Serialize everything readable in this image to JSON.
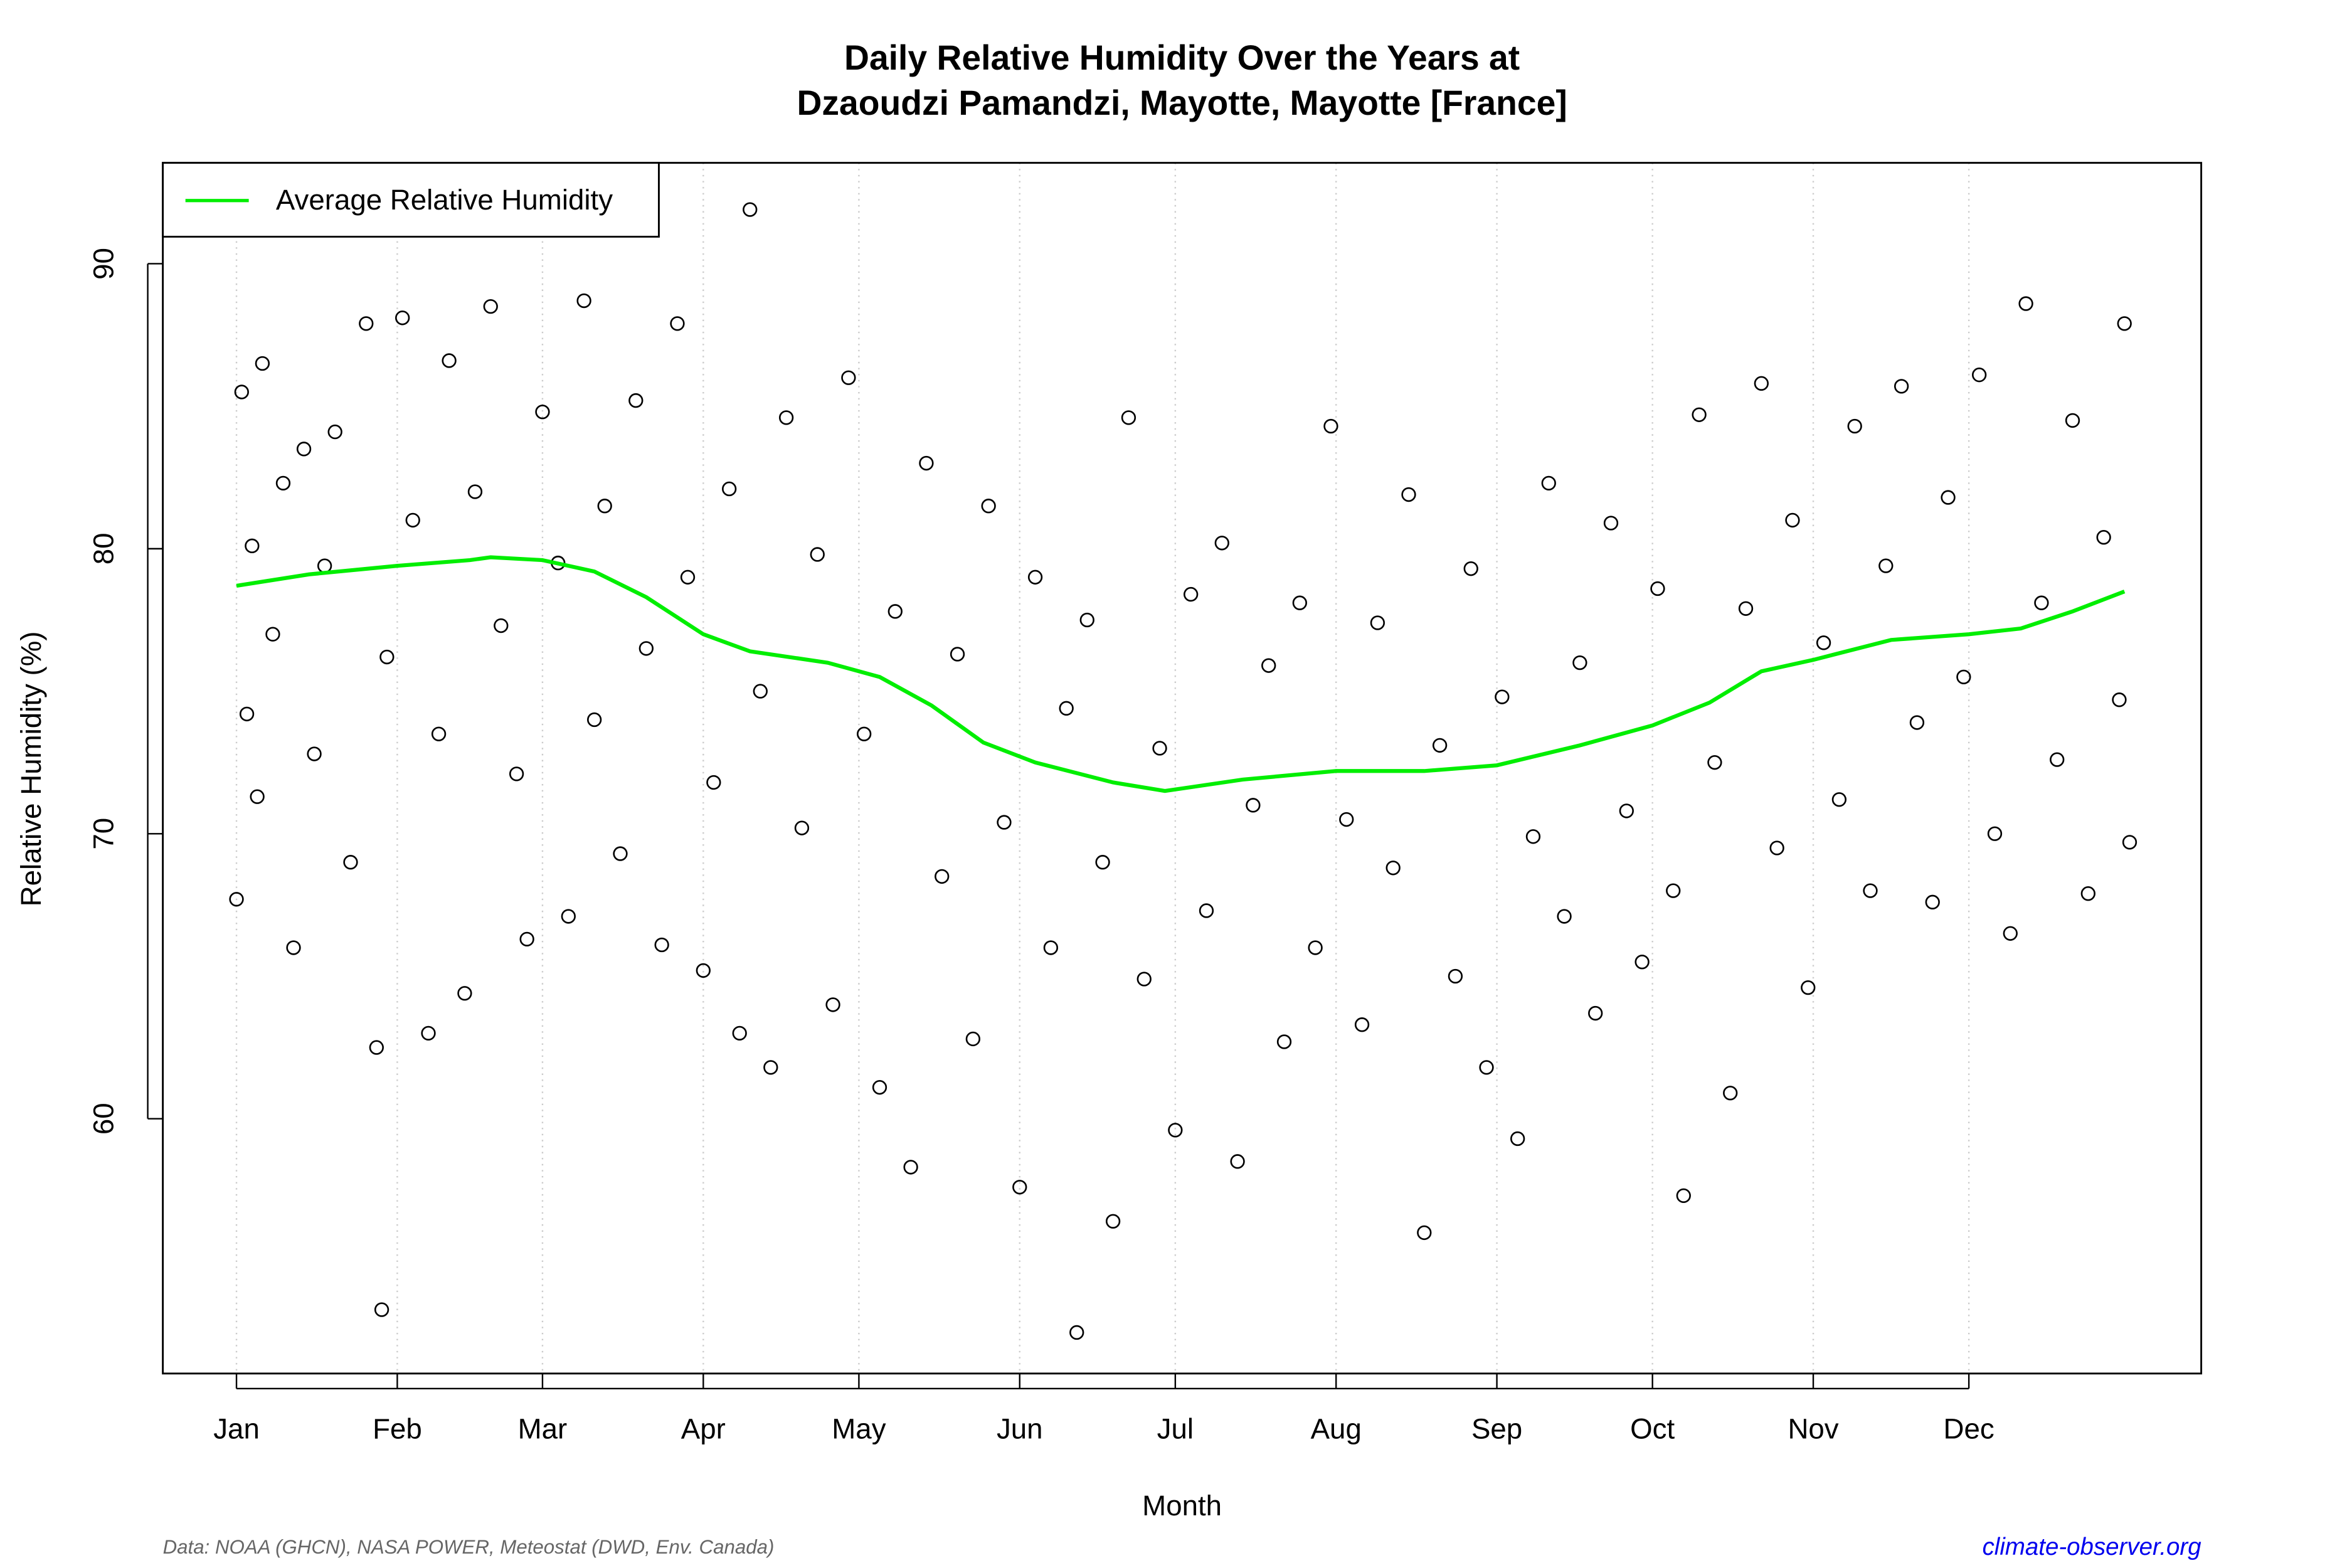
{
  "chart_data": {
    "type": "scatter",
    "title": [
      "Daily Relative Humidity Over the Years at",
      "Dzaoudzi Pamandzi, Mayotte, Mayotte [France]"
    ],
    "x_label": "Month",
    "y_label": "Relative Humidity  (%)",
    "source": "Data: NOAA (GHCN), NASA POWER, Meteostat (DWD, Env. Canada)",
    "site": "climate-observer.org",
    "xlim": [
      -13.2,
      379.8
    ],
    "ylim": [
      51.06,
      93.54
    ],
    "xticks": [
      {
        "value": 1,
        "label": "Jan"
      },
      {
        "value": 32,
        "label": "Feb"
      },
      {
        "value": 60,
        "label": "Mar"
      },
      {
        "value": 91,
        "label": "Apr"
      },
      {
        "value": 121,
        "label": "May"
      },
      {
        "value": 152,
        "label": "Jun"
      },
      {
        "value": 182,
        "label": "Jul"
      },
      {
        "value": 213,
        "label": "Aug"
      },
      {
        "value": 244,
        "label": "Sep"
      },
      {
        "value": 274,
        "label": "Oct"
      },
      {
        "value": 305,
        "label": "Nov"
      },
      {
        "value": 335,
        "label": "Dec"
      }
    ],
    "yticks": [
      60,
      70,
      80,
      90
    ],
    "grid": true,
    "legend": "top-left",
    "points": {
      "color": "#000000",
      "x": [
        1,
        2,
        3,
        4,
        5,
        6,
        8,
        10,
        12,
        14,
        16,
        18,
        20,
        23,
        26,
        28,
        29,
        30,
        33,
        35,
        38,
        40,
        42,
        45,
        47,
        50,
        52,
        55,
        57,
        60,
        63,
        65,
        68,
        70,
        72,
        75,
        78,
        80,
        83,
        86,
        88,
        91,
        93,
        96,
        98,
        100,
        102,
        104,
        107,
        110,
        113,
        116,
        119,
        122,
        125,
        128,
        131,
        134,
        137,
        140,
        143,
        146,
        149,
        152,
        155,
        158,
        161,
        163,
        165,
        168,
        170,
        173,
        176,
        179,
        182,
        185,
        188,
        191,
        194,
        197,
        200,
        203,
        206,
        209,
        212,
        215,
        218,
        221,
        224,
        227,
        230,
        233,
        236,
        239,
        242,
        245,
        248,
        251,
        254,
        257,
        260,
        263,
        266,
        269,
        272,
        275,
        278,
        280,
        283,
        286,
        289,
        292,
        295,
        298,
        301,
        304,
        307,
        310,
        313,
        316,
        319,
        322,
        325,
        328,
        331,
        334,
        337,
        340,
        343,
        346,
        349,
        352,
        355,
        358,
        361,
        364,
        365,
        366
      ],
      "y": [
        67.7,
        85.5,
        74.2,
        80.1,
        71.3,
        86.5,
        77.0,
        82.3,
        66.0,
        83.5,
        72.8,
        79.4,
        84.1,
        69.0,
        87.9,
        62.5,
        53.3,
        76.2,
        88.1,
        81.0,
        63.0,
        73.5,
        86.6,
        64.4,
        82.0,
        88.5,
        77.3,
        72.1,
        66.3,
        84.8,
        79.5,
        67.1,
        88.7,
        74.0,
        81.5,
        69.3,
        85.2,
        76.5,
        66.1,
        87.9,
        79.0,
        65.2,
        71.8,
        82.1,
        63.0,
        91.9,
        75.0,
        61.8,
        84.6,
        70.2,
        79.8,
        64.0,
        86.0,
        73.5,
        61.1,
        77.8,
        58.3,
        83.0,
        68.5,
        76.3,
        62.8,
        81.5,
        70.4,
        57.6,
        79.0,
        66.0,
        74.4,
        52.5,
        77.5,
        69.0,
        56.4,
        84.6,
        64.9,
        73.0,
        59.6,
        78.4,
        67.3,
        80.2,
        58.5,
        71.0,
        75.9,
        62.7,
        78.1,
        66.0,
        84.3,
        70.5,
        63.3,
        77.4,
        68.8,
        81.9,
        56.0,
        73.1,
        65.0,
        79.3,
        61.8,
        74.8,
        59.3,
        69.9,
        82.3,
        67.1,
        76.0,
        63.7,
        80.9,
        70.8,
        65.5,
        78.6,
        68.0,
        57.3,
        84.7,
        72.5,
        60.9,
        77.9,
        85.8,
        69.5,
        81.0,
        64.6,
        76.7,
        71.2,
        84.3,
        68.0,
        79.4,
        85.7,
        73.9,
        67.6,
        81.8,
        75.5,
        86.1,
        70.0,
        66.5,
        88.6,
        78.1,
        72.6,
        84.5,
        67.9,
        80.4,
        74.7,
        87.9,
        69.7
      ]
    },
    "line": {
      "name": "Average Relative Humidity",
      "color": "#00ee00",
      "x": [
        1,
        15,
        32,
        46,
        50,
        60,
        70,
        80,
        91,
        100,
        115,
        125,
        135,
        145,
        155,
        170,
        180,
        195,
        213,
        230,
        244,
        260,
        274,
        285,
        295,
        305,
        320,
        335,
        345,
        355,
        365
      ],
      "y": [
        78.7,
        79.1,
        79.4,
        79.6,
        79.7,
        79.6,
        79.2,
        78.3,
        77.0,
        76.4,
        76.0,
        75.5,
        74.5,
        73.2,
        72.5,
        71.8,
        71.5,
        71.9,
        72.2,
        72.2,
        72.4,
        73.1,
        73.8,
        74.6,
        75.7,
        76.1,
        76.8,
        77.0,
        77.2,
        77.8,
        78.5
      ]
    }
  }
}
